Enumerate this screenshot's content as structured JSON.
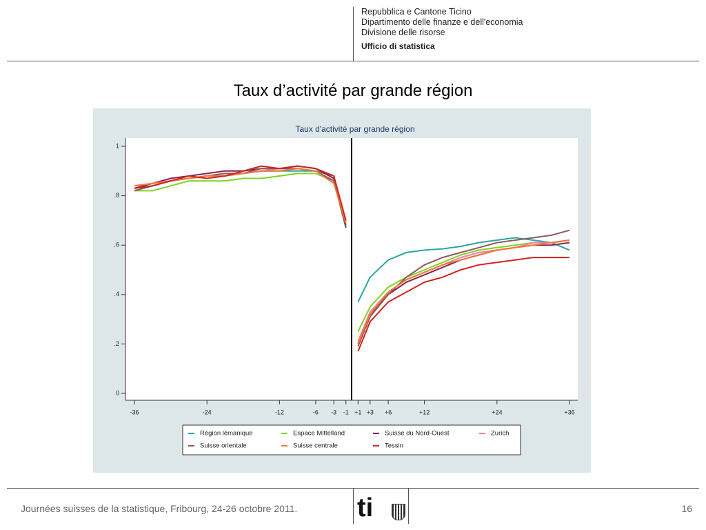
{
  "header": {
    "lines": [
      "Repubblica e Cantone Ticino",
      "Dipartimento delle finanze e dell'economia",
      "Divisione delle risorse"
    ],
    "office": "Ufficio di statistica"
  },
  "slide_title": "Taux d’activité par grande région",
  "footer": {
    "text": "Journées suisses de la statistique, Fribourg, 24-26 octobre 2011.",
    "page": "16",
    "logo": "ti"
  },
  "chart_data": {
    "type": "line",
    "title": "Taux d'activité par grande région",
    "x": [
      -36,
      -33,
      -30,
      -27,
      -24,
      -21,
      -18,
      -15,
      -12,
      -9,
      -6,
      -3,
      -1,
      0,
      1,
      3,
      6,
      9,
      12,
      15,
      18,
      21,
      24,
      27,
      30,
      33,
      36
    ],
    "xlim": [
      -36,
      36
    ],
    "xticks": [
      -36,
      -24,
      -12,
      -6,
      -3,
      -1,
      {
        "value": 1,
        "label": "+1"
      },
      {
        "value": 3,
        "label": "+3"
      },
      {
        "value": 6,
        "label": "+6"
      },
      {
        "value": 12,
        "label": "+12"
      },
      {
        "value": 24,
        "label": "+24"
      },
      {
        "value": 36,
        "label": "+36"
      }
    ],
    "ylim": [
      0,
      1
    ],
    "yticks": [
      0,
      {
        "value": 0.2,
        "label": ".2"
      },
      {
        "value": 0.4,
        "label": ".4"
      },
      {
        "value": 0.6,
        "label": ".6"
      },
      {
        "value": 0.8,
        "label": ".8"
      },
      1
    ],
    "series": [
      {
        "name": "Région lémanique",
        "color": "#2aa5a5",
        "values": [
          0.83,
          0.84,
          0.86,
          0.87,
          0.88,
          0.89,
          0.89,
          0.9,
          0.9,
          0.9,
          0.9,
          0.88,
          0.67,
          null,
          0.37,
          0.47,
          0.54,
          0.57,
          0.58,
          0.585,
          0.595,
          0.61,
          0.62,
          0.63,
          0.62,
          0.61,
          0.58
        ]
      },
      {
        "name": "Espace Mittelland",
        "color": "#7ed321",
        "values": [
          0.82,
          0.82,
          0.84,
          0.86,
          0.86,
          0.86,
          0.87,
          0.87,
          0.88,
          0.89,
          0.89,
          0.86,
          0.69,
          null,
          0.25,
          0.35,
          0.43,
          0.47,
          0.5,
          0.53,
          0.56,
          0.58,
          0.59,
          0.6,
          0.61,
          0.61,
          0.62
        ]
      },
      {
        "name": "Suisse du Nord-Ouest",
        "color": "#8b2252",
        "values": [
          0.83,
          0.85,
          0.87,
          0.88,
          0.89,
          0.9,
          0.9,
          0.91,
          0.91,
          0.92,
          0.91,
          0.87,
          0.68,
          null,
          0.2,
          0.32,
          0.4,
          0.45,
          0.48,
          0.51,
          0.54,
          0.56,
          0.58,
          0.59,
          0.6,
          0.6,
          0.61
        ]
      },
      {
        "name": "Zurich",
        "color": "#f07ab4",
        "values": [
          0.84,
          0.85,
          0.86,
          0.87,
          0.88,
          0.89,
          0.89,
          0.9,
          0.91,
          0.91,
          0.9,
          0.86,
          0.7,
          null,
          0.21,
          0.33,
          0.41,
          0.46,
          0.49,
          0.52,
          0.55,
          0.57,
          0.58,
          0.59,
          0.61,
          0.61,
          0.62
        ]
      },
      {
        "name": "Suisse orientale",
        "color": "#8b5a5a",
        "values": [
          0.82,
          0.84,
          0.86,
          0.87,
          0.88,
          0.89,
          0.89,
          0.91,
          0.91,
          0.91,
          0.9,
          0.86,
          0.67,
          null,
          0.19,
          0.31,
          0.4,
          0.47,
          0.52,
          0.55,
          0.57,
          0.59,
          0.61,
          0.62,
          0.63,
          0.64,
          0.66
        ]
      },
      {
        "name": "Suisse centrale",
        "color": "#f07830",
        "values": [
          0.84,
          0.85,
          0.86,
          0.87,
          0.88,
          0.88,
          0.89,
          0.9,
          0.9,
          0.91,
          0.9,
          0.85,
          0.69,
          null,
          0.2,
          0.32,
          0.41,
          0.46,
          0.49,
          0.52,
          0.54,
          0.56,
          0.58,
          0.59,
          0.6,
          0.61,
          0.62
        ]
      },
      {
        "name": "Tessin",
        "color": "#d42020",
        "values": [
          0.83,
          0.84,
          0.86,
          0.88,
          0.87,
          0.88,
          0.9,
          0.92,
          0.91,
          0.92,
          0.91,
          0.88,
          0.7,
          null,
          0.17,
          0.29,
          0.37,
          0.41,
          0.45,
          0.47,
          0.5,
          0.52,
          0.53,
          0.54,
          0.55,
          0.55,
          0.55
        ]
      }
    ]
  }
}
